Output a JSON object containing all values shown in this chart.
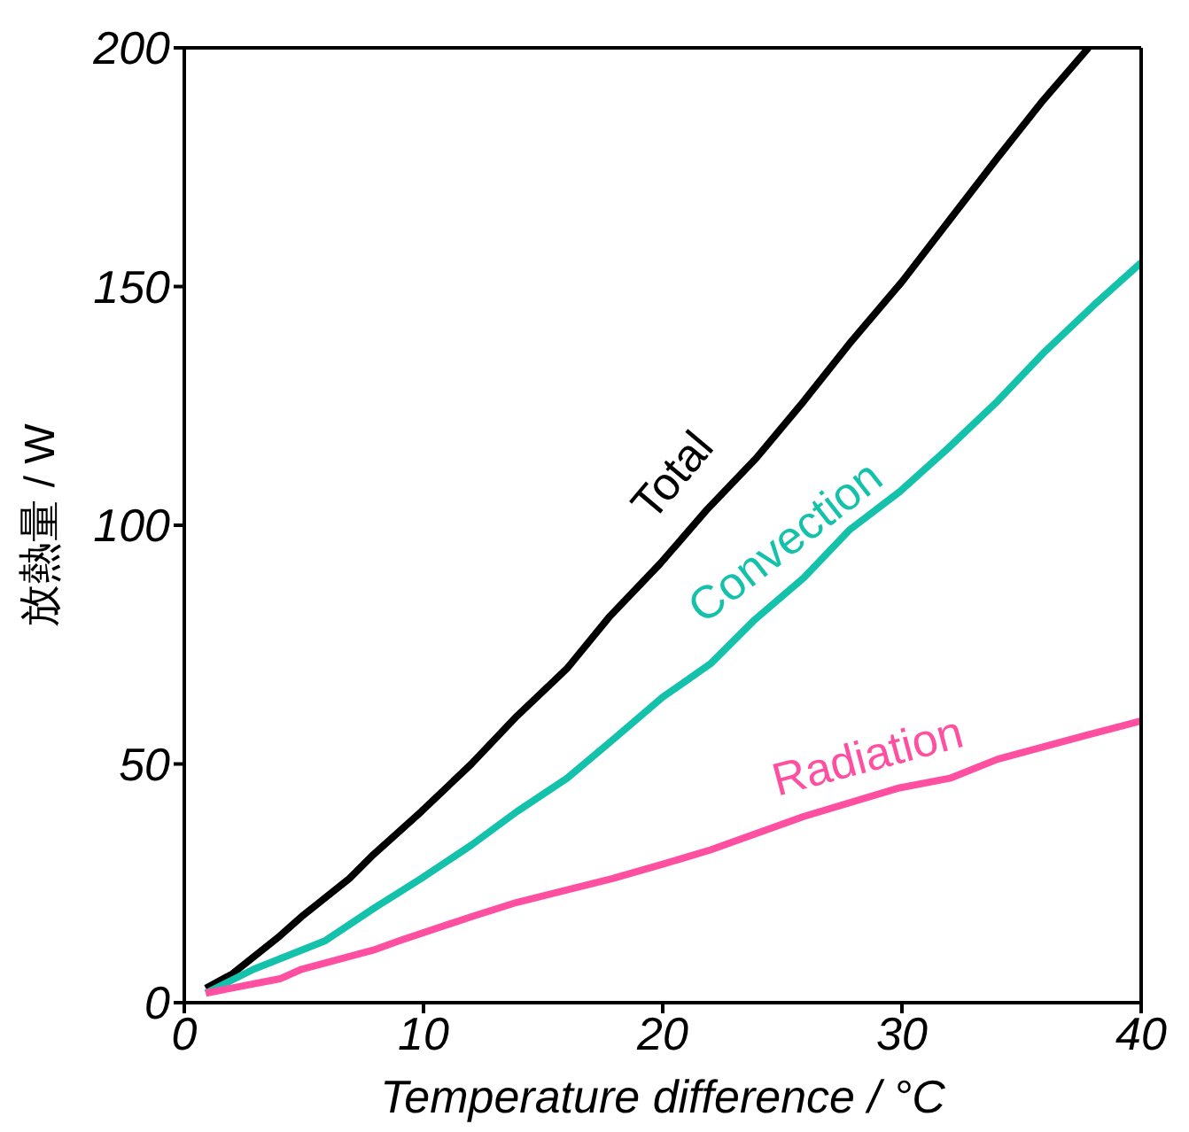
{
  "chart_data": {
    "type": "line",
    "xlabel": "Temperature difference / °C",
    "ylabel": "放熱量 / W",
    "xlim": [
      0,
      40
    ],
    "ylim": [
      0,
      200
    ],
    "xticks": [
      0,
      10,
      20,
      30,
      40
    ],
    "yticks": [
      0,
      50,
      100,
      150,
      200
    ],
    "grid": false,
    "marker": "none",
    "line_style": "solid",
    "series": [
      {
        "name": "Total",
        "color": "#000000",
        "x": [
          0.9,
          2,
          3,
          4,
          4.9,
          5.9,
          6.9,
          7.9,
          9.9,
          12,
          13.9,
          16,
          17.8,
          19.9,
          21.8,
          23.9,
          25.9,
          27.8,
          30,
          32,
          34,
          35.9,
          37.8
        ],
        "values": [
          3,
          6,
          10,
          14,
          18,
          22,
          26,
          31,
          40,
          50,
          60,
          70,
          81,
          92,
          103,
          114,
          126,
          138,
          151,
          164,
          177,
          189,
          200
        ]
      },
      {
        "name": "Convection",
        "color": "#14c1ab",
        "x": [
          0.9,
          2.9,
          4.9,
          5.9,
          8,
          9.9,
          12,
          13.9,
          16,
          17.9,
          20,
          22,
          23.8,
          25.9,
          27.8,
          29.9,
          31.9,
          34,
          35.9,
          38,
          40
        ],
        "values": [
          2,
          7,
          11,
          13,
          20,
          26,
          33,
          40,
          47,
          55,
          64,
          71,
          80,
          89,
          99,
          107,
          116,
          126,
          136,
          146,
          155
        ]
      },
      {
        "name": "Radiation",
        "color": "#ff4fa0",
        "x": [
          0.9,
          4,
          4.9,
          7.9,
          9,
          12,
          13.9,
          17.9,
          20,
          22,
          25.9,
          29.9,
          32,
          34,
          37.7,
          40
        ],
        "values": [
          2,
          5,
          7,
          11,
          13,
          18,
          21,
          26,
          29,
          32,
          39,
          45,
          47,
          51,
          56,
          59
        ]
      }
    ]
  }
}
